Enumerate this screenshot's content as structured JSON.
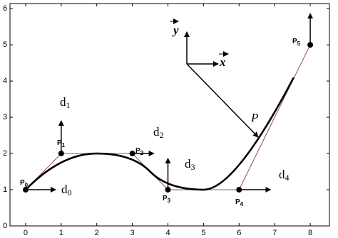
{
  "chart_data": {
    "type": "bspline",
    "xlim": [
      -0.44,
      8.54
    ],
    "ylim": [
      0,
      6.14
    ],
    "xticks": [
      0,
      1,
      2,
      3,
      4,
      5,
      6,
      7,
      8
    ],
    "yticks": [
      0,
      1,
      2,
      3,
      4,
      5,
      6
    ],
    "x": [
      0,
      1,
      3,
      4,
      6,
      8
    ],
    "y": [
      1,
      2,
      2,
      1,
      1,
      5
    ],
    "point_labels": [
      {
        "text": "P",
        "sub": "0"
      },
      {
        "text": "P",
        "sub": "1"
      },
      {
        "text": "P",
        "sub": "2"
      },
      {
        "text": "P",
        "sub": "3"
      },
      {
        "text": "P",
        "sub": "4"
      },
      {
        "text": "P",
        "sub": "5"
      }
    ],
    "direction_labels": [
      {
        "text": "d",
        "sub": "0"
      },
      {
        "text": "d",
        "sub": "1"
      },
      {
        "text": "d",
        "sub": "2"
      },
      {
        "text": "d",
        "sub": "3"
      },
      {
        "text": "d",
        "sub": "4"
      }
    ],
    "frame_labels": {
      "y": "y",
      "x": "x",
      "point": "P"
    },
    "polygon_color": "#8b3a3a",
    "curve_color": "#000000"
  }
}
